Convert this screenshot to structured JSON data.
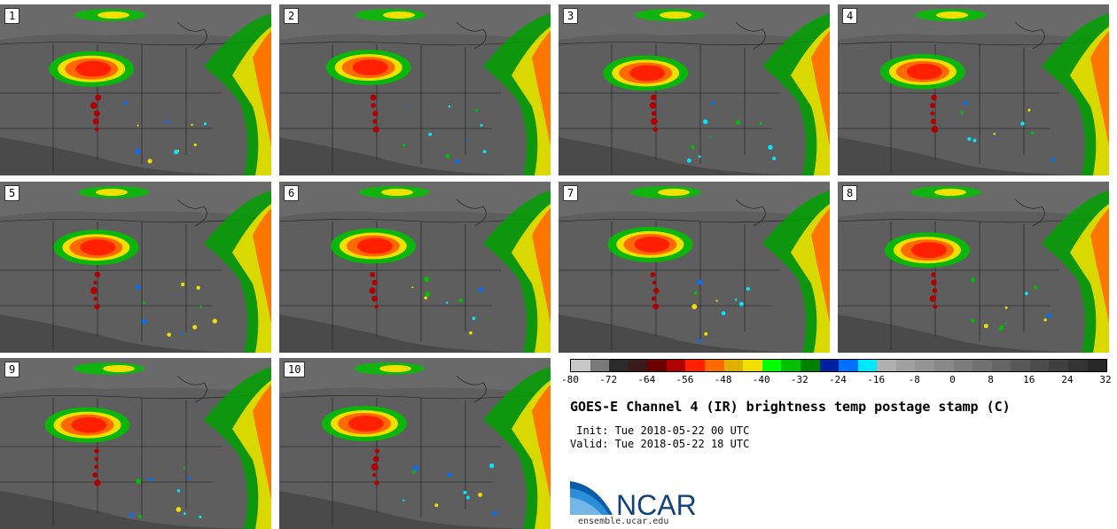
{
  "panels": [
    {
      "label": "1"
    },
    {
      "label": "2"
    },
    {
      "label": "3"
    },
    {
      "label": "4"
    },
    {
      "label": "5"
    },
    {
      "label": "6"
    },
    {
      "label": "7"
    },
    {
      "label": "8"
    },
    {
      "label": "9"
    },
    {
      "label": "10"
    }
  ],
  "colorbar": {
    "colors": [
      "#c8c8c8",
      "#7a7a7a",
      "#2a2a2a",
      "#3a1a1a",
      "#6a0000",
      "#b00000",
      "#ff2000",
      "#ff6a00",
      "#e0b000",
      "#f0e000",
      "#00ff00",
      "#00c000",
      "#008000",
      "#0020a0",
      "#0070ff",
      "#00e8ff",
      "#b0b0b0",
      "#a0a0a0",
      "#949494",
      "#888888",
      "#7c7c7c",
      "#707070",
      "#646464",
      "#585858",
      "#4c4c4c",
      "#404040",
      "#343434",
      "#282828"
    ],
    "ticks": [
      "-80",
      "-72",
      "-64",
      "-56",
      "-48",
      "-40",
      "-32",
      "-24",
      "-16",
      "-8",
      "0",
      "8",
      "16",
      "24",
      "32"
    ]
  },
  "title": "GOES-E Channel 4 (IR) brightness temp postage stamp (C)",
  "init_label": " Init: Tue 2018-05-22 00 UTC",
  "valid_label": "Valid: Tue 2018-05-22 18 UTC",
  "logo": {
    "name": "NCAR",
    "url": "ensemble.ucar.edu"
  }
}
